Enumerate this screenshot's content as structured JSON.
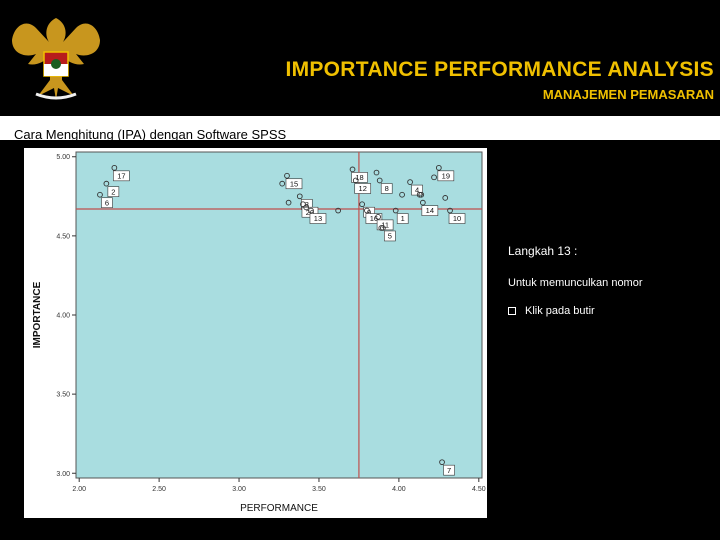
{
  "header": {
    "title": "IMPORTANCE PERFORMANCE ANALYSIS",
    "subtitle": "MANAJEMEN PEMASARAN",
    "logo_icon": "garuda-emblem-icon",
    "accent_color": "#f0c000"
  },
  "band": {
    "text": "Cara Menghitung (IPA) dengan Software SPSS"
  },
  "panel": {
    "step": "Langkah 13 :",
    "description": "Untuk memunculkan nomor",
    "bullet_item": "Klik pada butir",
    "bullet_icon": "square-bullet-icon"
  },
  "chart_data": {
    "type": "scatter",
    "xlabel": "PERFORMANCE",
    "ylabel": "IMPORTANCE",
    "xlim": [
      1.98,
      4.52
    ],
    "ylim": [
      2.97,
      5.03
    ],
    "x_ticks": [
      2.0,
      2.5,
      3.0,
      3.5,
      4.0,
      4.5
    ],
    "x_tick_labels": [
      "2.00",
      "2.50",
      "3.00",
      "3.50",
      "4.00",
      "4.50"
    ],
    "y_ticks": [
      3.0,
      3.5,
      4.0,
      4.5,
      5.0
    ],
    "y_tick_labels": [
      "3.00",
      "3.50",
      "4.00",
      "4.50",
      "5.00"
    ],
    "ref_x": 3.75,
    "ref_y": 4.67,
    "background_color": "#a9dde0",
    "ref_line_color": "#c0504d",
    "grid": false,
    "points": [
      {
        "x": 2.22,
        "y": 4.93,
        "label": "17"
      },
      {
        "x": 2.17,
        "y": 4.83,
        "label": "2"
      },
      {
        "x": 2.13,
        "y": 4.76,
        "label": "6"
      },
      {
        "x": 3.27,
        "y": 4.83,
        "label": ""
      },
      {
        "x": 3.3,
        "y": 4.88,
        "label": "15"
      },
      {
        "x": 3.31,
        "y": 4.71,
        "label": ""
      },
      {
        "x": 3.38,
        "y": 4.75,
        "label": "3"
      },
      {
        "x": 3.4,
        "y": 4.7,
        "label": "20"
      },
      {
        "x": 3.42,
        "y": 4.68,
        "label": ""
      },
      {
        "x": 3.45,
        "y": 4.66,
        "label": "13"
      },
      {
        "x": 3.62,
        "y": 4.66,
        "label": ""
      },
      {
        "x": 3.71,
        "y": 4.92,
        "label": "18"
      },
      {
        "x": 3.73,
        "y": 4.85,
        "label": "12"
      },
      {
        "x": 3.77,
        "y": 4.7,
        "label": "9"
      },
      {
        "x": 3.8,
        "y": 4.66,
        "label": "16"
      },
      {
        "x": 3.86,
        "y": 4.9,
        "label": ""
      },
      {
        "x": 3.87,
        "y": 4.62,
        "label": "11"
      },
      {
        "x": 3.88,
        "y": 4.85,
        "label": "8"
      },
      {
        "x": 3.89,
        "y": 4.55,
        "label": ""
      },
      {
        "x": 3.9,
        "y": 4.55,
        "label": "5"
      },
      {
        "x": 3.98,
        "y": 4.66,
        "label": "1"
      },
      {
        "x": 4.02,
        "y": 4.76,
        "label": ""
      },
      {
        "x": 4.07,
        "y": 4.84,
        "label": "4"
      },
      {
        "x": 4.13,
        "y": 4.76,
        "label": ""
      },
      {
        "x": 4.14,
        "y": 4.76,
        "label": ""
      },
      {
        "x": 4.15,
        "y": 4.71,
        "label": "14"
      },
      {
        "x": 4.22,
        "y": 4.87,
        "label": ""
      },
      {
        "x": 4.25,
        "y": 4.93,
        "label": "19"
      },
      {
        "x": 4.29,
        "y": 4.74,
        "label": ""
      },
      {
        "x": 4.32,
        "y": 4.66,
        "label": "10"
      },
      {
        "x": 4.27,
        "y": 3.07,
        "label": "7"
      }
    ]
  }
}
